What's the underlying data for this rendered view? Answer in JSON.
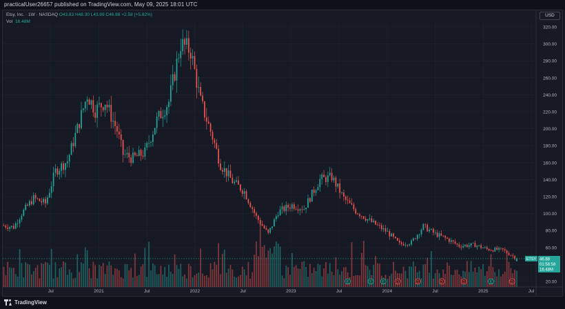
{
  "header": {
    "publish_line": "practicalUser26657 published on TradingView.com, May 09, 2025 18:01 UTC"
  },
  "legend": {
    "symbol_line": "Etsy, Inc. · 1W · NASDAQ",
    "open": "O43.83",
    "high": "H48.30",
    "low": "L43.69",
    "close": "C46.88",
    "change": "+2.58 (+5.82%)",
    "vol_label": "Vol",
    "vol_value": "16.48M"
  },
  "currency_button": "USD",
  "price_tag": {
    "symbol": "ETSY",
    "price": "46.88",
    "countdown": "01:58:58",
    "volume": "16.48M"
  },
  "footer": {
    "brand": "TradingView"
  },
  "colors": {
    "up": "#26a69a",
    "down": "#ef5350",
    "background": "#161a25",
    "grid": "#1f2431",
    "text": "#b2b5be"
  },
  "chart_data": {
    "type": "candlestick",
    "title": "Etsy, Inc. · 1W · NASDAQ",
    "ylim": [
      15,
      330
    ],
    "y_ticks": [
      20,
      40,
      60,
      80,
      100,
      120,
      140,
      160,
      180,
      200,
      220,
      240,
      260,
      280,
      300,
      320
    ],
    "y_tick_labels": [
      "20.00",
      "40.00",
      "60.00",
      "80.00",
      "100.00",
      "120.00",
      "140.00",
      "160.00",
      "180.00",
      "200.00",
      "220.00",
      "240.00",
      "260.00",
      "280.00",
      "300.00",
      "320.00"
    ],
    "x_ticks": [
      {
        "label": "Jul",
        "t": 0.5
      },
      {
        "label": "2021",
        "t": 1.0
      },
      {
        "label": "Jul",
        "t": 1.5
      },
      {
        "label": "2022",
        "t": 2.0
      },
      {
        "label": "Jul",
        "t": 2.5
      },
      {
        "label": "2023",
        "t": 3.0
      },
      {
        "label": "Jul",
        "t": 3.5
      },
      {
        "label": "2024",
        "t": 4.0
      },
      {
        "label": "Jul",
        "t": 4.5
      },
      {
        "label": "2025",
        "t": 5.0
      },
      {
        "label": "Jul",
        "t": 5.5
      }
    ],
    "x_range": [
      0.0,
      5.55
    ],
    "weeks_total": 259,
    "price_path": [
      [
        0,
        86
      ],
      [
        6,
        84
      ],
      [
        10,
        100
      ],
      [
        16,
        118
      ],
      [
        22,
        112
      ],
      [
        27,
        150
      ],
      [
        33,
        162
      ],
      [
        38,
        200
      ],
      [
        43,
        240
      ],
      [
        47,
        222
      ],
      [
        52,
        232
      ],
      [
        58,
        198
      ],
      [
        61,
        170
      ],
      [
        66,
        165
      ],
      [
        72,
        172
      ],
      [
        78,
        210
      ],
      [
        84,
        232
      ],
      [
        90,
        300
      ],
      [
        95,
        292
      ],
      [
        100,
        232
      ],
      [
        106,
        190
      ],
      [
        110,
        158
      ],
      [
        116,
        138
      ],
      [
        122,
        126
      ],
      [
        128,
        96
      ],
      [
        134,
        76
      ],
      [
        139,
        102
      ],
      [
        146,
        110
      ],
      [
        152,
        106
      ],
      [
        160,
        140
      ],
      [
        166,
        143
      ],
      [
        172,
        118
      ],
      [
        178,
        103
      ],
      [
        186,
        90
      ],
      [
        194,
        78
      ],
      [
        200,
        64
      ],
      [
        206,
        66
      ],
      [
        212,
        85
      ],
      [
        218,
        76
      ],
      [
        224,
        70
      ],
      [
        230,
        62
      ],
      [
        238,
        63
      ],
      [
        244,
        58
      ],
      [
        252,
        57
      ],
      [
        259,
        47
      ]
    ],
    "last": {
      "open": 43.83,
      "high": 48.3,
      "low": 43.69,
      "close": 46.88,
      "change": 2.58,
      "change_pct": 5.82,
      "volume": "16.48M"
    },
    "earnings_markers": [
      {
        "t": 3.59,
        "type": "E"
      },
      {
        "t": 3.83,
        "type": "E"
      },
      {
        "t": 3.96,
        "type": "E"
      },
      {
        "t": 4.11,
        "type": "D"
      },
      {
        "t": 4.32,
        "type": "D"
      },
      {
        "t": 4.57,
        "type": "D"
      },
      {
        "t": 4.8,
        "type": "D"
      },
      {
        "t": 5.08,
        "type": "E"
      },
      {
        "t": 5.3,
        "type": "D"
      }
    ]
  }
}
